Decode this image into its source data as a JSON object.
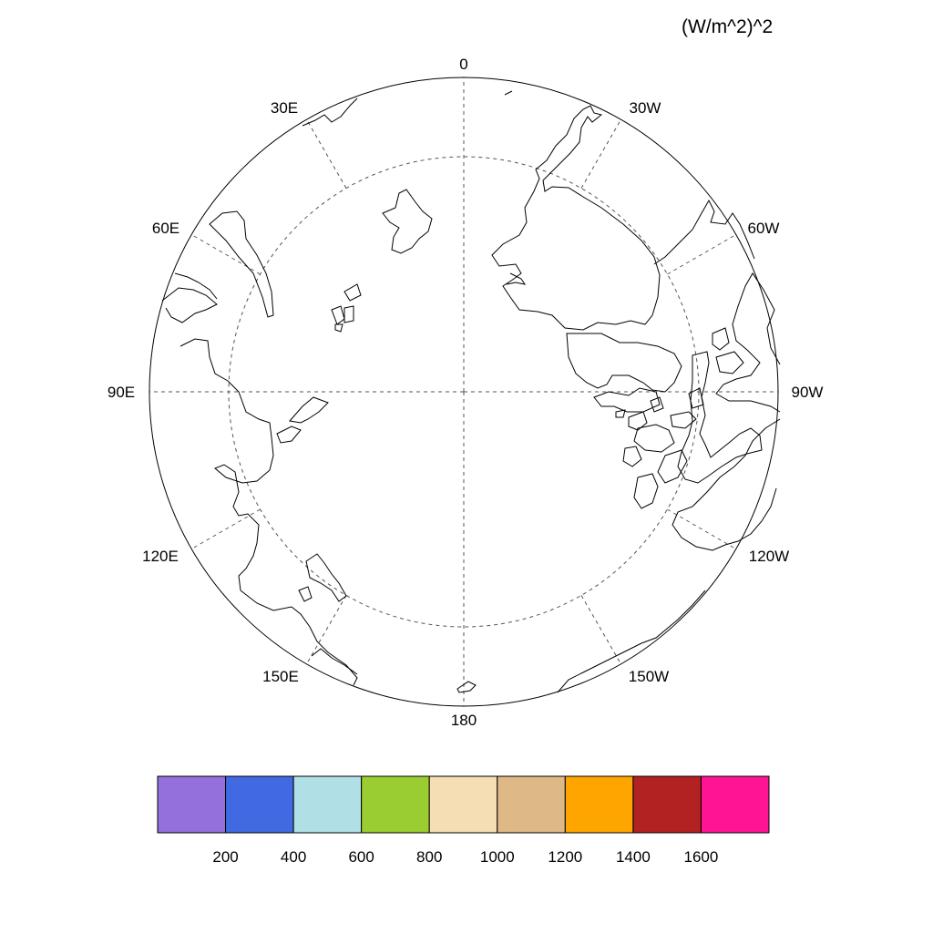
{
  "map": {
    "projection": "polar-stereographic-north",
    "units_label": "(W/m^2)^2",
    "longitude_labels": [
      "0",
      "30W",
      "60W",
      "90W",
      "120W",
      "150W",
      "180",
      "150E",
      "120E",
      "90E",
      "60E",
      "30E"
    ],
    "grid_circle_latitude": 70,
    "coastline_color": "#000000",
    "grid_color": "#555555"
  },
  "colorbar": {
    "colors": [
      "#9370DB",
      "#4169E1",
      "#B0E0E6",
      "#9ACD32",
      "#F5DEB3",
      "#DEB887",
      "#FFA500",
      "#B22222",
      "#FF1493"
    ],
    "tick_labels": [
      "200",
      "400",
      "600",
      "800",
      "1000",
      "1200",
      "1400",
      "1600"
    ]
  }
}
